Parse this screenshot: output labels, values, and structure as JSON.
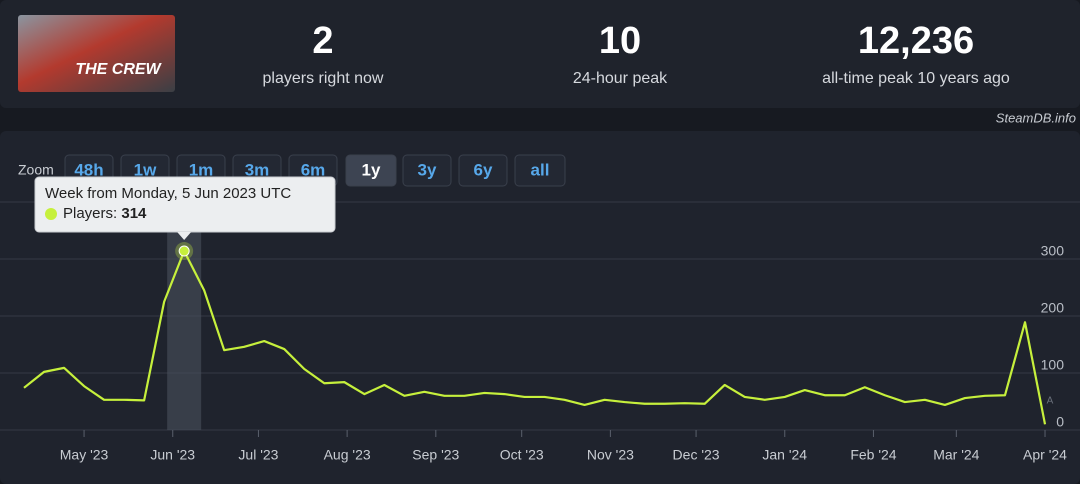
{
  "header": {
    "logo_text": "THE CREW",
    "stats": [
      {
        "value": "2",
        "label": "players right now"
      },
      {
        "value": "10",
        "label": "24-hour peak"
      },
      {
        "value": "12,236",
        "label": "all-time peak 10 years ago"
      }
    ]
  },
  "credit": "SteamDB.info",
  "zoom": {
    "label": "Zoom",
    "buttons": [
      "48h",
      "1w",
      "1m",
      "3m",
      "6m",
      "1y",
      "3y",
      "6y",
      "all"
    ],
    "active": "1y"
  },
  "chart_data": {
    "type": "line",
    "categories": [
      null,
      null,
      null,
      null,
      null,
      null,
      null,
      null,
      null,
      null,
      null,
      null,
      null,
      null,
      null,
      null,
      null,
      null,
      null,
      null,
      null,
      null,
      null,
      null,
      null,
      null,
      null,
      null,
      null,
      null,
      null,
      null,
      null,
      null,
      null,
      null,
      null,
      null,
      null,
      null,
      null,
      null,
      null,
      null,
      null,
      null,
      null,
      null,
      null,
      null,
      null,
      null
    ],
    "series": [
      {
        "color": "#c6f03c",
        "values": [
          74,
          102,
          109,
          77,
          53,
          53,
          52,
          225,
          314,
          245,
          140,
          146,
          156,
          142,
          107,
          82,
          84,
          63,
          79,
          60,
          67,
          60,
          60,
          65,
          63,
          58,
          58,
          53,
          44,
          53,
          49,
          46,
          46,
          47,
          46,
          79,
          58,
          53,
          58,
          70,
          61,
          61,
          75,
          61,
          49,
          53,
          44,
          56,
          60,
          61,
          189,
          10
        ]
      }
    ],
    "ylim": [
      0,
      400
    ],
    "yticks": [
      0,
      100,
      200,
      300
    ],
    "xticks": [
      {
        "value": 3,
        "label": "May '23"
      },
      {
        "value": 7.43,
        "label": "Jun '23"
      },
      {
        "value": 11.71,
        "label": "Jul '23"
      },
      {
        "value": 16.14,
        "label": "Aug '23"
      },
      {
        "value": 20.57,
        "label": "Sep '23"
      },
      {
        "value": 24.86,
        "label": "Oct '23"
      },
      {
        "value": 29.29,
        "label": "Nov '23"
      },
      {
        "value": 33.57,
        "label": "Dec '23"
      },
      {
        "value": 38,
        "label": "Jan '24"
      },
      {
        "value": 42.43,
        "label": "Feb '24"
      },
      {
        "value": 46.57,
        "label": "Mar '24"
      },
      {
        "value": 51,
        "label": "Apr '24"
      }
    ],
    "grid": true,
    "highlight_index": 8,
    "tooltip": {
      "title": "Week from Monday, 5 Jun 2023 UTC",
      "label": "Players:"
    },
    "annotations": [
      {
        "text": "A",
        "index": 51
      }
    ]
  }
}
